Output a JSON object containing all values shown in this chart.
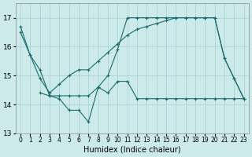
{
  "xlabel": "Humidex (Indice chaleur)",
  "xlim": [
    -0.5,
    23.5
  ],
  "ylim": [
    13.0,
    17.5
  ],
  "yticks": [
    13,
    14,
    15,
    16,
    17
  ],
  "xticks": [
    0,
    1,
    2,
    3,
    4,
    5,
    6,
    7,
    8,
    9,
    10,
    11,
    12,
    13,
    14,
    15,
    16,
    17,
    18,
    19,
    20,
    21,
    22,
    23
  ],
  "bg_color": "#cdeaea",
  "grid_color": "#afd4d4",
  "line_color": "#1a6b6b",
  "series1_x": [
    0,
    1,
    2,
    3,
    4,
    5,
    6,
    7,
    8,
    9,
    10,
    11,
    12,
    13,
    14,
    15,
    16,
    17,
    18,
    19,
    20,
    21,
    22,
    23
  ],
  "series1_y": [
    16.7,
    15.7,
    15.2,
    14.3,
    14.3,
    14.3,
    14.3,
    14.3,
    14.6,
    15.0,
    15.9,
    17.0,
    17.0,
    17.0,
    17.0,
    17.0,
    17.0,
    17.0,
    17.0,
    17.0,
    17.0,
    15.6,
    14.9,
    14.2
  ],
  "series2_x": [
    0,
    1,
    2,
    3,
    4,
    5,
    6,
    7,
    8,
    9,
    10,
    11,
    12,
    13,
    14,
    15,
    16,
    17,
    18,
    19,
    20,
    21,
    22,
    23
  ],
  "series2_y": [
    16.5,
    15.7,
    14.9,
    14.4,
    14.7,
    15.0,
    15.2,
    15.2,
    15.5,
    15.8,
    16.1,
    16.4,
    16.6,
    16.7,
    16.8,
    16.9,
    17.0,
    17.0,
    17.0,
    17.0,
    17.0,
    15.6,
    14.9,
    14.2
  ],
  "series3_x": [
    2,
    3,
    4,
    5,
    6,
    7,
    8,
    9,
    10,
    11,
    12,
    13,
    14,
    15,
    16,
    17,
    18,
    19,
    20,
    21,
    22,
    23
  ],
  "series3_y": [
    14.4,
    14.3,
    14.2,
    13.8,
    13.8,
    13.4,
    14.6,
    14.4,
    14.8,
    14.8,
    14.2,
    14.2,
    14.2,
    14.2,
    14.2,
    14.2,
    14.2,
    14.2,
    14.2,
    14.2,
    14.2,
    14.2
  ]
}
